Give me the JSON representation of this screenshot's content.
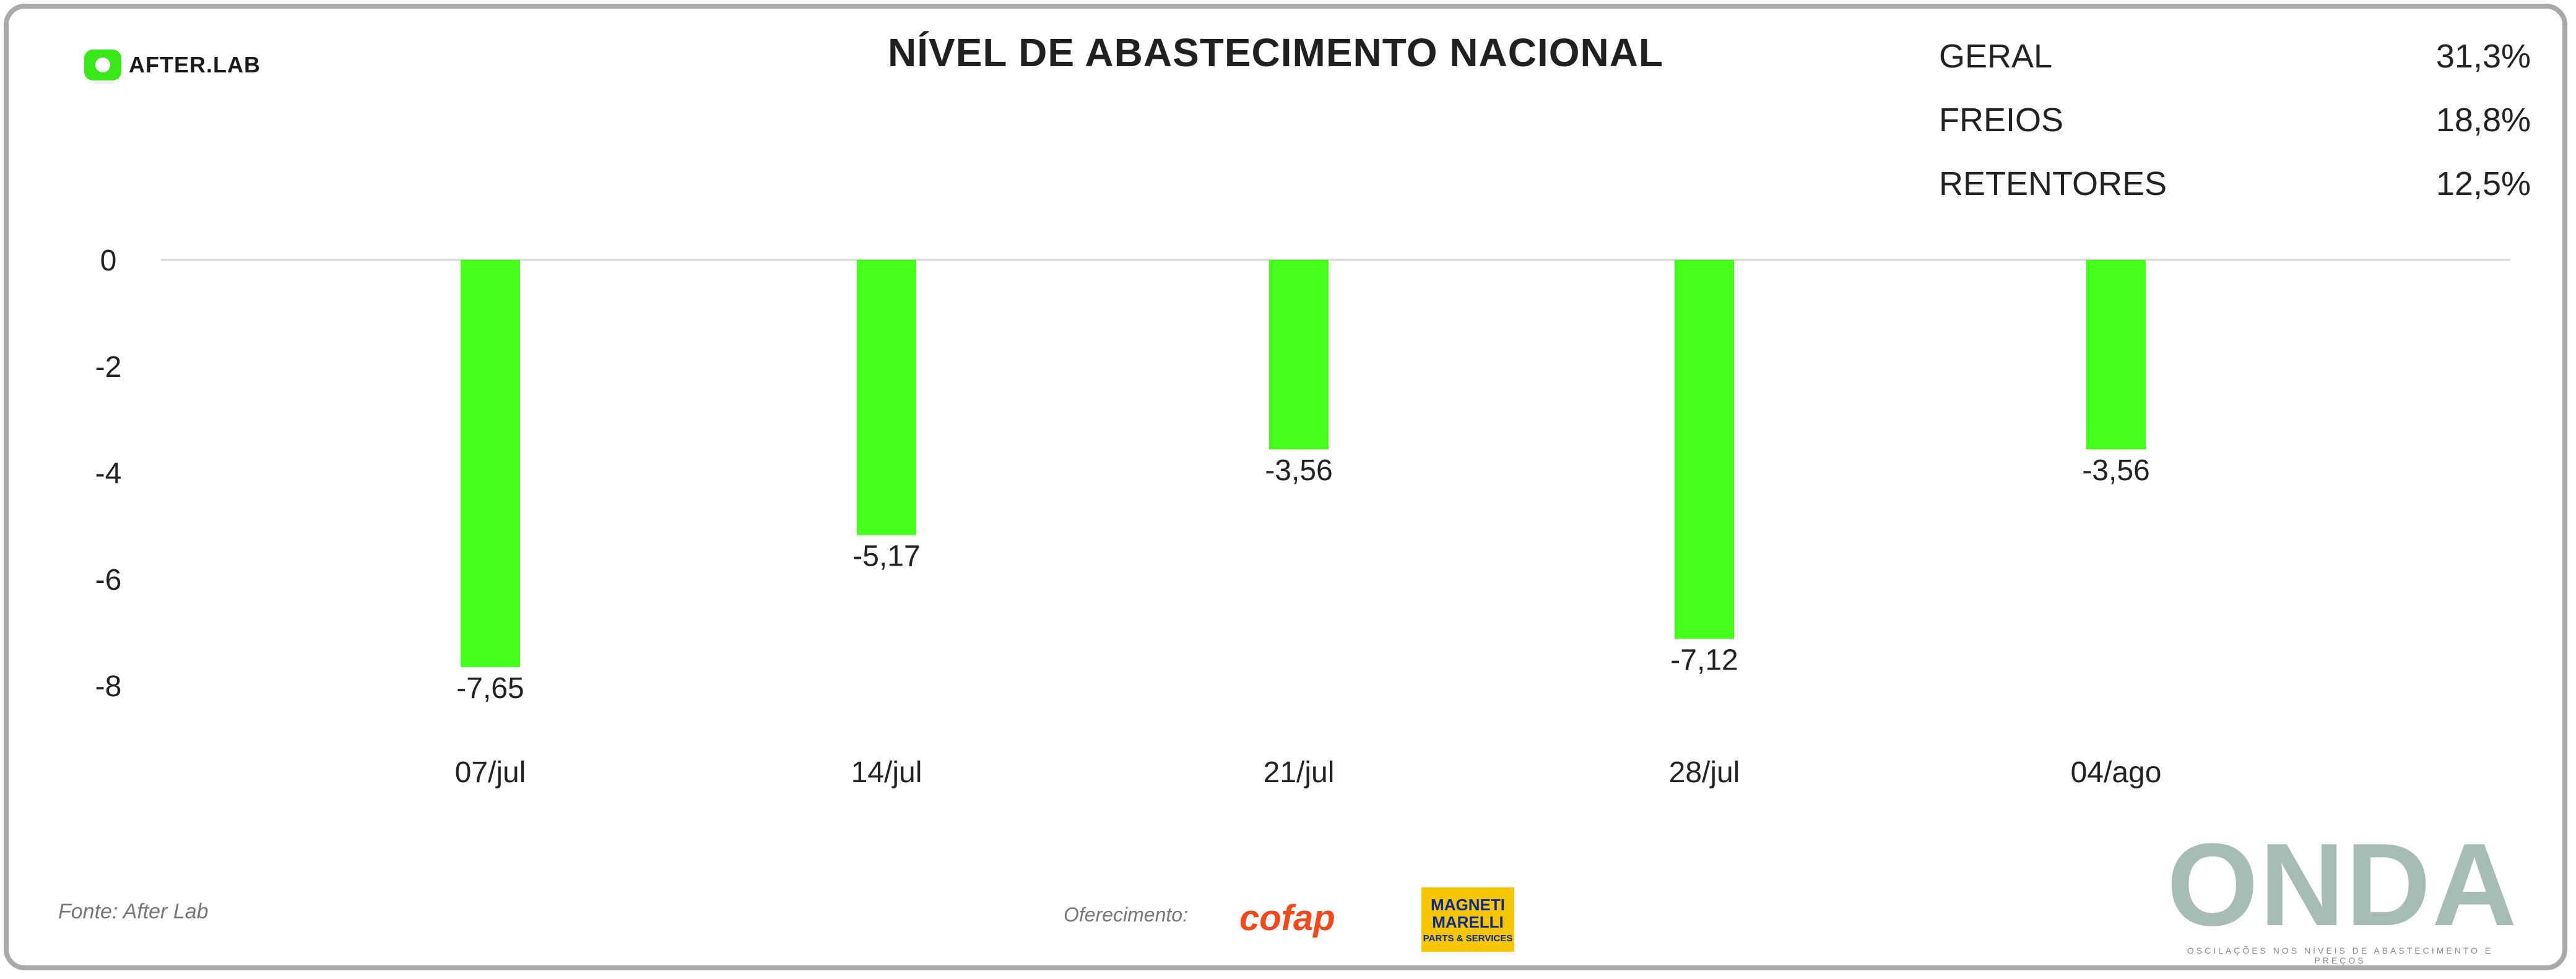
{
  "brand": {
    "logo_text": "AFTER.LAB"
  },
  "summary": [
    {
      "label": "GERAL",
      "value": "31,3%"
    },
    {
      "label": "FREIOS",
      "value": "18,8%"
    },
    {
      "label": "RETENTORES",
      "value": "12,5%"
    }
  ],
  "chart_data": {
    "type": "bar",
    "title": "NÍVEL DE ABASTECIMENTO NACIONAL",
    "categories": [
      "07/jul",
      "14/jul",
      "21/jul",
      "28/jul",
      "04/ago"
    ],
    "values": [
      -7.65,
      -5.17,
      -3.56,
      -7.12,
      -3.56
    ],
    "data_labels": [
      "-7,65",
      "-5,17",
      "-3,56",
      "-7,12",
      "-3,56"
    ],
    "ylim": [
      -8,
      0
    ],
    "yticks": [
      0,
      -2,
      -4,
      -6,
      -8
    ],
    "bar_color": "#44ff1a",
    "xlabel": "",
    "ylabel": ""
  },
  "footer": {
    "source": "Fonte: After Lab",
    "sponsor_label": "Oferecimento:",
    "cofap": "cofap",
    "magneti_line1": "MAGNETI",
    "magneti_line2": "MARELLI",
    "magneti_sub": "PARTS & SERVICES",
    "onda": "ONDA",
    "onda_tagline": "OSCILAÇÕES NOS NÍVEIS DE ABASTECIMENTO E PREÇOS"
  }
}
